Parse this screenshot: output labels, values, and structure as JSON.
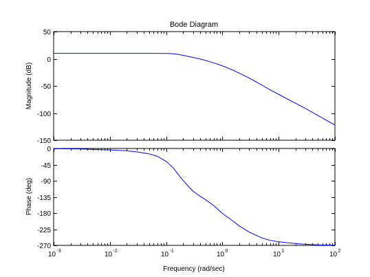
{
  "chart_data": [
    {
      "type": "line",
      "title": "Bode Diagram",
      "ylabel": "Magnitude (dB)",
      "xlabel": "",
      "xscale": "log",
      "xlim": [
        0.001,
        100
      ],
      "ylim": [
        -150,
        50
      ],
      "xticks": [
        {
          "base": "10",
          "exp": "-3"
        },
        {
          "base": "10",
          "exp": "-2"
        },
        {
          "base": "10",
          "exp": "-1"
        },
        {
          "base": "10",
          "exp": "0"
        },
        {
          "base": "10",
          "exp": "1"
        },
        {
          "base": "10",
          "exp": "2"
        }
      ],
      "show_xtick_labels": false,
      "yticks": [
        "50",
        "0",
        "-50",
        "-100",
        "-150"
      ],
      "ytick_values": [
        50,
        0,
        -50,
        -100,
        -150
      ],
      "grid": false,
      "series": [
        {
          "color": "#0000ff",
          "x": [
            0.001,
            0.003,
            0.01,
            0.03,
            0.06,
            0.1,
            0.13,
            0.16,
            0.2,
            0.3,
            0.4,
            0.5,
            0.7,
            1,
            1.5,
            2,
            3,
            5,
            7,
            10,
            20,
            30,
            50,
            70,
            100
          ],
          "y": [
            10,
            10,
            10,
            10,
            10,
            9.8,
            9.3,
            8.2,
            6.3,
            2.5,
            -0.5,
            -3,
            -7.5,
            -13,
            -20.5,
            -26.5,
            -35.5,
            -48.3,
            -57,
            -65.5,
            -82,
            -91.5,
            -104.5,
            -113,
            -122
          ]
        }
      ]
    },
    {
      "type": "line",
      "title": "",
      "ylabel": "Phase (deg)",
      "xlabel": "Frequency  (rad/sec)",
      "xscale": "log",
      "xlim": [
        0.001,
        100
      ],
      "ylim": [
        -270,
        0
      ],
      "xticks": [
        {
          "base": "10",
          "exp": "-3"
        },
        {
          "base": "10",
          "exp": "-2"
        },
        {
          "base": "10",
          "exp": "-1"
        },
        {
          "base": "10",
          "exp": "0"
        },
        {
          "base": "10",
          "exp": "1"
        },
        {
          "base": "10",
          "exp": "2"
        }
      ],
      "show_xtick_labels": true,
      "yticks": [
        "0",
        "-45",
        "-90",
        "-135",
        "-180",
        "-225",
        "-270"
      ],
      "ytick_values": [
        0,
        -45,
        -90,
        -135,
        -180,
        -225,
        -270
      ],
      "grid": false,
      "series": [
        {
          "color": "#0000ff",
          "x": [
            0.001,
            0.003,
            0.01,
            0.02,
            0.03,
            0.05,
            0.07,
            0.1,
            0.13,
            0.16,
            0.2,
            0.25,
            0.3,
            0.4,
            0.5,
            0.7,
            1,
            1.5,
            2,
            3,
            5,
            7,
            10,
            20,
            30,
            50,
            100
          ],
          "y": [
            -0.5,
            -1.5,
            -4,
            -6.5,
            -9.5,
            -15,
            -22,
            -36,
            -52,
            -70,
            -89,
            -106,
            -119,
            -133,
            -142.5,
            -159,
            -181,
            -201,
            -216,
            -233,
            -249,
            -256,
            -260,
            -265,
            -267,
            -268.5,
            -269.5
          ]
        }
      ]
    }
  ]
}
